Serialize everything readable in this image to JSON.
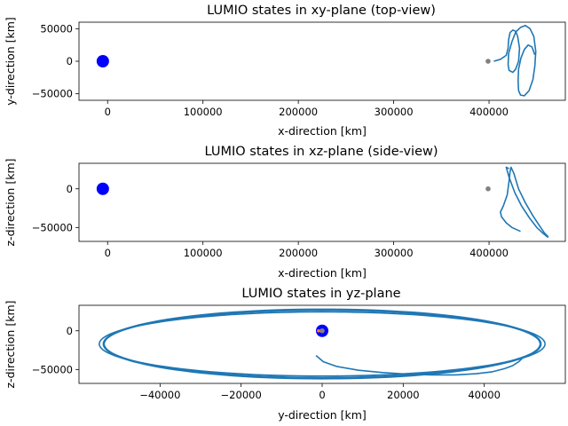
{
  "colors": {
    "trajectory": "#1f77b4",
    "earth": "#0000ff",
    "moon": "#808080",
    "marker_small": "#ff7f0e"
  },
  "chart_data": [
    {
      "type": "line",
      "title": "LUMIO states in xy-plane (top-view)",
      "xlabel": "x-direction [km]",
      "ylabel": "y-direction [km]",
      "xlim": [
        -30000,
        480000
      ],
      "ylim": [
        -60000,
        60000
      ],
      "xticks": [
        0,
        100000,
        200000,
        300000,
        400000
      ],
      "xtick_labels": [
        "0",
        "100000",
        "200000",
        "300000",
        "400000"
      ],
      "yticks": [
        -50000,
        0,
        50000
      ],
      "ytick_labels": [
        "−50000",
        "0",
        "50000"
      ],
      "grid": false,
      "bodies": [
        {
          "name": "earth",
          "x": -5000,
          "y": 0
        },
        {
          "name": "moon",
          "x": 399000,
          "y": 0
        }
      ],
      "series": [
        {
          "x": [
            405000,
            412000,
            418000,
            420000,
            420500,
            422000,
            425000,
            428000,
            430000,
            432000,
            431000,
            428000,
            425000,
            421000,
            420000,
            420500,
            424000,
            428000,
            433000,
            438000,
            443000,
            447000,
            449000,
            448000,
            446000,
            442000,
            437000,
            433000,
            431000,
            430500,
            431000,
            433500,
            437000,
            441000,
            445000,
            448000
          ],
          "y": [
            0,
            3000,
            9000,
            20000,
            33000,
            44000,
            48000,
            46000,
            38000,
            20000,
            0,
            -12000,
            -17000,
            -14000,
            -5000,
            12000,
            30000,
            45000,
            52000,
            55000,
            50000,
            38000,
            15000,
            -8000,
            -28000,
            -45000,
            -53000,
            -52000,
            -45000,
            -30000,
            -12000,
            5000,
            18000,
            25000,
            22000,
            10000
          ]
        }
      ]
    },
    {
      "type": "line",
      "title": "LUMIO states in xz-plane (side-view)",
      "xlabel": "x-direction [km]",
      "ylabel": "z-direction [km]",
      "xlim": [
        -30000,
        480000
      ],
      "ylim": [
        -68000,
        33000
      ],
      "xticks": [
        0,
        100000,
        200000,
        300000,
        400000
      ],
      "xtick_labels": [
        "0",
        "100000",
        "200000",
        "300000",
        "400000"
      ],
      "yticks": [
        -50000,
        0
      ],
      "ytick_labels": [
        "−50000",
        "0"
      ],
      "grid": false,
      "bodies": [
        {
          "name": "earth",
          "x": -5000,
          "y": 0
        },
        {
          "name": "moon",
          "x": 399000,
          "y": 0
        }
      ],
      "series": [
        {
          "x": [
            433000,
            424000,
            418000,
            413000,
            412000,
            415000,
            419000,
            421000,
            422000,
            423000,
            426000,
            431000,
            438000,
            446000,
            453000,
            458000,
            462000
          ],
          "y": [
            -55000,
            -50000,
            -44000,
            -36000,
            -30000,
            -22000,
            -8000,
            10000,
            22000,
            28000,
            20000,
            0,
            -18000,
            -35000,
            -48000,
            -57000,
            -62000
          ]
        },
        {
          "x": [
            421000,
            418000,
            421000,
            427000,
            434000,
            442000,
            450000,
            457000,
            462000
          ],
          "y": [
            26000,
            28000,
            15000,
            -5000,
            -22000,
            -37000,
            -50000,
            -58000,
            -63000
          ]
        }
      ]
    },
    {
      "type": "line",
      "title": "LUMIO states in yz-plane",
      "xlabel": "y-direction [km]",
      "ylabel": "z-direction [km]",
      "xlim": [
        -60000,
        60000
      ],
      "ylim": [
        -68000,
        33000
      ],
      "xticks": [
        -40000,
        -20000,
        0,
        20000,
        40000
      ],
      "xtick_labels": [
        "−40000",
        "−20000",
        "0",
        "20000",
        "40000"
      ],
      "yticks": [
        -50000,
        0
      ],
      "ytick_labels": [
        "−50000",
        "0"
      ],
      "grid": false,
      "bodies": [
        {
          "name": "earth",
          "x": 0,
          "y": 0
        },
        {
          "name": "moon",
          "x": 0,
          "y": 0
        },
        {
          "name": "marker_small",
          "x": -900,
          "y": 0
        }
      ],
      "orbit": {
        "center": [
          0,
          -17000
        ],
        "semi_y": [
          54000,
          53800,
          55000
        ],
        "semi_z": [
          45000,
          43500,
          41500
        ]
      },
      "series": [
        {
          "x": [
            -1500,
            300,
            3500,
            9000,
            15000,
            21000,
            27000,
            33000,
            38000,
            42000,
            45000,
            47000,
            48500,
            49500
          ],
          "y": [
            -32000,
            -40000,
            -46000,
            -51000,
            -54000,
            -56000,
            -57000,
            -57000,
            -55500,
            -53000,
            -49000,
            -45000,
            -40000,
            -35000
          ]
        }
      ]
    }
  ]
}
